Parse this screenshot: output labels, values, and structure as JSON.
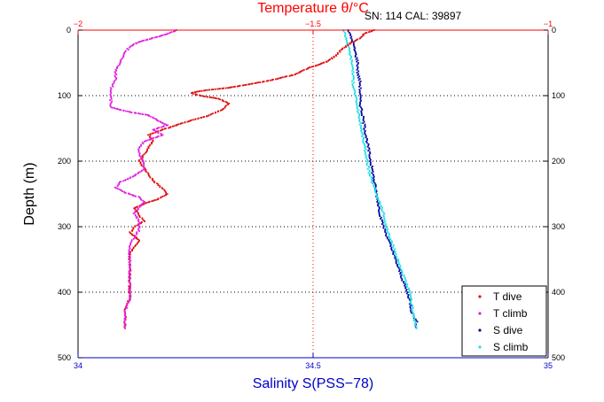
{
  "chart_data": {
    "type": "scatter",
    "title": "Temperature θ/°C",
    "annotation": "SN: 114  CAL: 39897",
    "ylabel": "Depth (m)",
    "xlabel_bottom": "Salinity S(PSS−78)",
    "ylim": [
      0,
      500
    ],
    "y_reversed": true,
    "xlim_bottom": [
      34,
      35
    ],
    "xlim_top": [
      -2,
      -1
    ],
    "grid": "dotted",
    "legend_position": "bottom-right",
    "y_ticks": [
      "0",
      "100",
      "200",
      "300",
      "400",
      "500"
    ],
    "x_ticks_bottom": [
      "34",
      "34.5",
      "35"
    ],
    "x_ticks_top": [
      "−2",
      "−1.5",
      "−1"
    ],
    "colors": {
      "t_dive": "#e01010",
      "t_climb": "#e020e0",
      "s_dive": "#0a0aa0",
      "s_climb": "#20e0e8",
      "top_axis": "#ff0000",
      "bottom_axis": "#0000cc"
    },
    "series": [
      {
        "name": "T dive",
        "axis": "top",
        "points": [
          [
            -1.37,
            0
          ],
          [
            -1.39,
            5
          ],
          [
            -1.4,
            12
          ],
          [
            -1.42,
            20
          ],
          [
            -1.44,
            30
          ],
          [
            -1.45,
            38
          ],
          [
            -1.47,
            48
          ],
          [
            -1.51,
            58
          ],
          [
            -1.54,
            68
          ],
          [
            -1.58,
            75
          ],
          [
            -1.63,
            82
          ],
          [
            -1.68,
            88
          ],
          [
            -1.73,
            92
          ],
          [
            -1.76,
            96
          ],
          [
            -1.74,
            100
          ],
          [
            -1.7,
            105
          ],
          [
            -1.68,
            112
          ],
          [
            -1.69,
            120
          ],
          [
            -1.72,
            130
          ],
          [
            -1.76,
            138
          ],
          [
            -1.79,
            145
          ],
          [
            -1.82,
            152
          ],
          [
            -1.85,
            160
          ],
          [
            -1.84,
            170
          ],
          [
            -1.85,
            180
          ],
          [
            -1.86,
            190
          ],
          [
            -1.87,
            200
          ],
          [
            -1.86,
            210
          ],
          [
            -1.85,
            220
          ],
          [
            -1.84,
            230
          ],
          [
            -1.82,
            242
          ],
          [
            -1.81,
            250
          ],
          [
            -1.83,
            258
          ],
          [
            -1.86,
            265
          ],
          [
            -1.88,
            272
          ],
          [
            -1.87,
            282
          ],
          [
            -1.86,
            292
          ],
          [
            -1.88,
            300
          ],
          [
            -1.89,
            310
          ],
          [
            -1.87,
            320
          ],
          [
            -1.88,
            330
          ],
          [
            -1.89,
            340
          ],
          [
            -1.89,
            350
          ],
          [
            -1.89,
            365
          ],
          [
            -1.89,
            380
          ],
          [
            -1.89,
            395
          ],
          [
            -1.89,
            410
          ],
          [
            -1.9,
            425
          ],
          [
            -1.9,
            440
          ],
          [
            -1.9,
            455
          ]
        ]
      },
      {
        "name": "T climb",
        "axis": "top",
        "points": [
          [
            -1.79,
            0
          ],
          [
            -1.81,
            6
          ],
          [
            -1.84,
            12
          ],
          [
            -1.87,
            18
          ],
          [
            -1.89,
            25
          ],
          [
            -1.9,
            35
          ],
          [
            -1.91,
            48
          ],
          [
            -1.92,
            62
          ],
          [
            -1.92,
            75
          ],
          [
            -1.93,
            90
          ],
          [
            -1.93,
            105
          ],
          [
            -1.93,
            118
          ],
          [
            -1.89,
            125
          ],
          [
            -1.85,
            130
          ],
          [
            -1.83,
            138
          ],
          [
            -1.81,
            145
          ],
          [
            -1.84,
            152
          ],
          [
            -1.82,
            160
          ],
          [
            -1.86,
            170
          ],
          [
            -1.87,
            180
          ],
          [
            -1.87,
            190
          ],
          [
            -1.86,
            200
          ],
          [
            -1.86,
            212
          ],
          [
            -1.88,
            222
          ],
          [
            -1.91,
            232
          ],
          [
            -1.92,
            240
          ],
          [
            -1.9,
            248
          ],
          [
            -1.87,
            255
          ],
          [
            -1.86,
            262
          ],
          [
            -1.87,
            270
          ],
          [
            -1.88,
            280
          ],
          [
            -1.87,
            292
          ],
          [
            -1.87,
            305
          ],
          [
            -1.88,
            315
          ],
          [
            -1.89,
            328
          ],
          [
            -1.89,
            340
          ],
          [
            -1.89,
            352
          ],
          [
            -1.89,
            370
          ],
          [
            -1.89,
            390
          ],
          [
            -1.89,
            410
          ],
          [
            -1.9,
            430
          ],
          [
            -1.9,
            455
          ]
        ]
      },
      {
        "name": "S dive",
        "axis": "bottom",
        "points": [
          [
            34.575,
            0
          ],
          [
            34.58,
            10
          ],
          [
            34.585,
            20
          ],
          [
            34.59,
            35
          ],
          [
            34.595,
            50
          ],
          [
            34.595,
            65
          ],
          [
            34.6,
            80
          ],
          [
            34.6,
            95
          ],
          [
            34.6,
            110
          ],
          [
            34.605,
            130
          ],
          [
            34.61,
            150
          ],
          [
            34.615,
            170
          ],
          [
            34.62,
            190
          ],
          [
            34.625,
            210
          ],
          [
            34.63,
            230
          ],
          [
            34.635,
            250
          ],
          [
            34.64,
            270
          ],
          [
            34.645,
            290
          ],
          [
            34.655,
            310
          ],
          [
            34.665,
            330
          ],
          [
            34.675,
            350
          ],
          [
            34.685,
            370
          ],
          [
            34.695,
            390
          ],
          [
            34.705,
            410
          ],
          [
            34.71,
            430
          ],
          [
            34.72,
            445
          ],
          [
            34.72,
            455
          ]
        ]
      },
      {
        "name": "S climb",
        "axis": "bottom",
        "points": [
          [
            34.565,
            0
          ],
          [
            34.57,
            10
          ],
          [
            34.575,
            25
          ],
          [
            34.58,
            40
          ],
          [
            34.585,
            60
          ],
          [
            34.585,
            80
          ],
          [
            34.59,
            100
          ],
          [
            34.595,
            120
          ],
          [
            34.6,
            140
          ],
          [
            34.605,
            160
          ],
          [
            34.61,
            180
          ],
          [
            34.615,
            200
          ],
          [
            34.62,
            220
          ],
          [
            34.63,
            240
          ],
          [
            34.64,
            260
          ],
          [
            34.65,
            280
          ],
          [
            34.655,
            300
          ],
          [
            34.665,
            320
          ],
          [
            34.675,
            340
          ],
          [
            34.685,
            360
          ],
          [
            34.695,
            380
          ],
          [
            34.705,
            400
          ],
          [
            34.71,
            420
          ],
          [
            34.715,
            440
          ],
          [
            34.72,
            455
          ]
        ]
      }
    ]
  }
}
